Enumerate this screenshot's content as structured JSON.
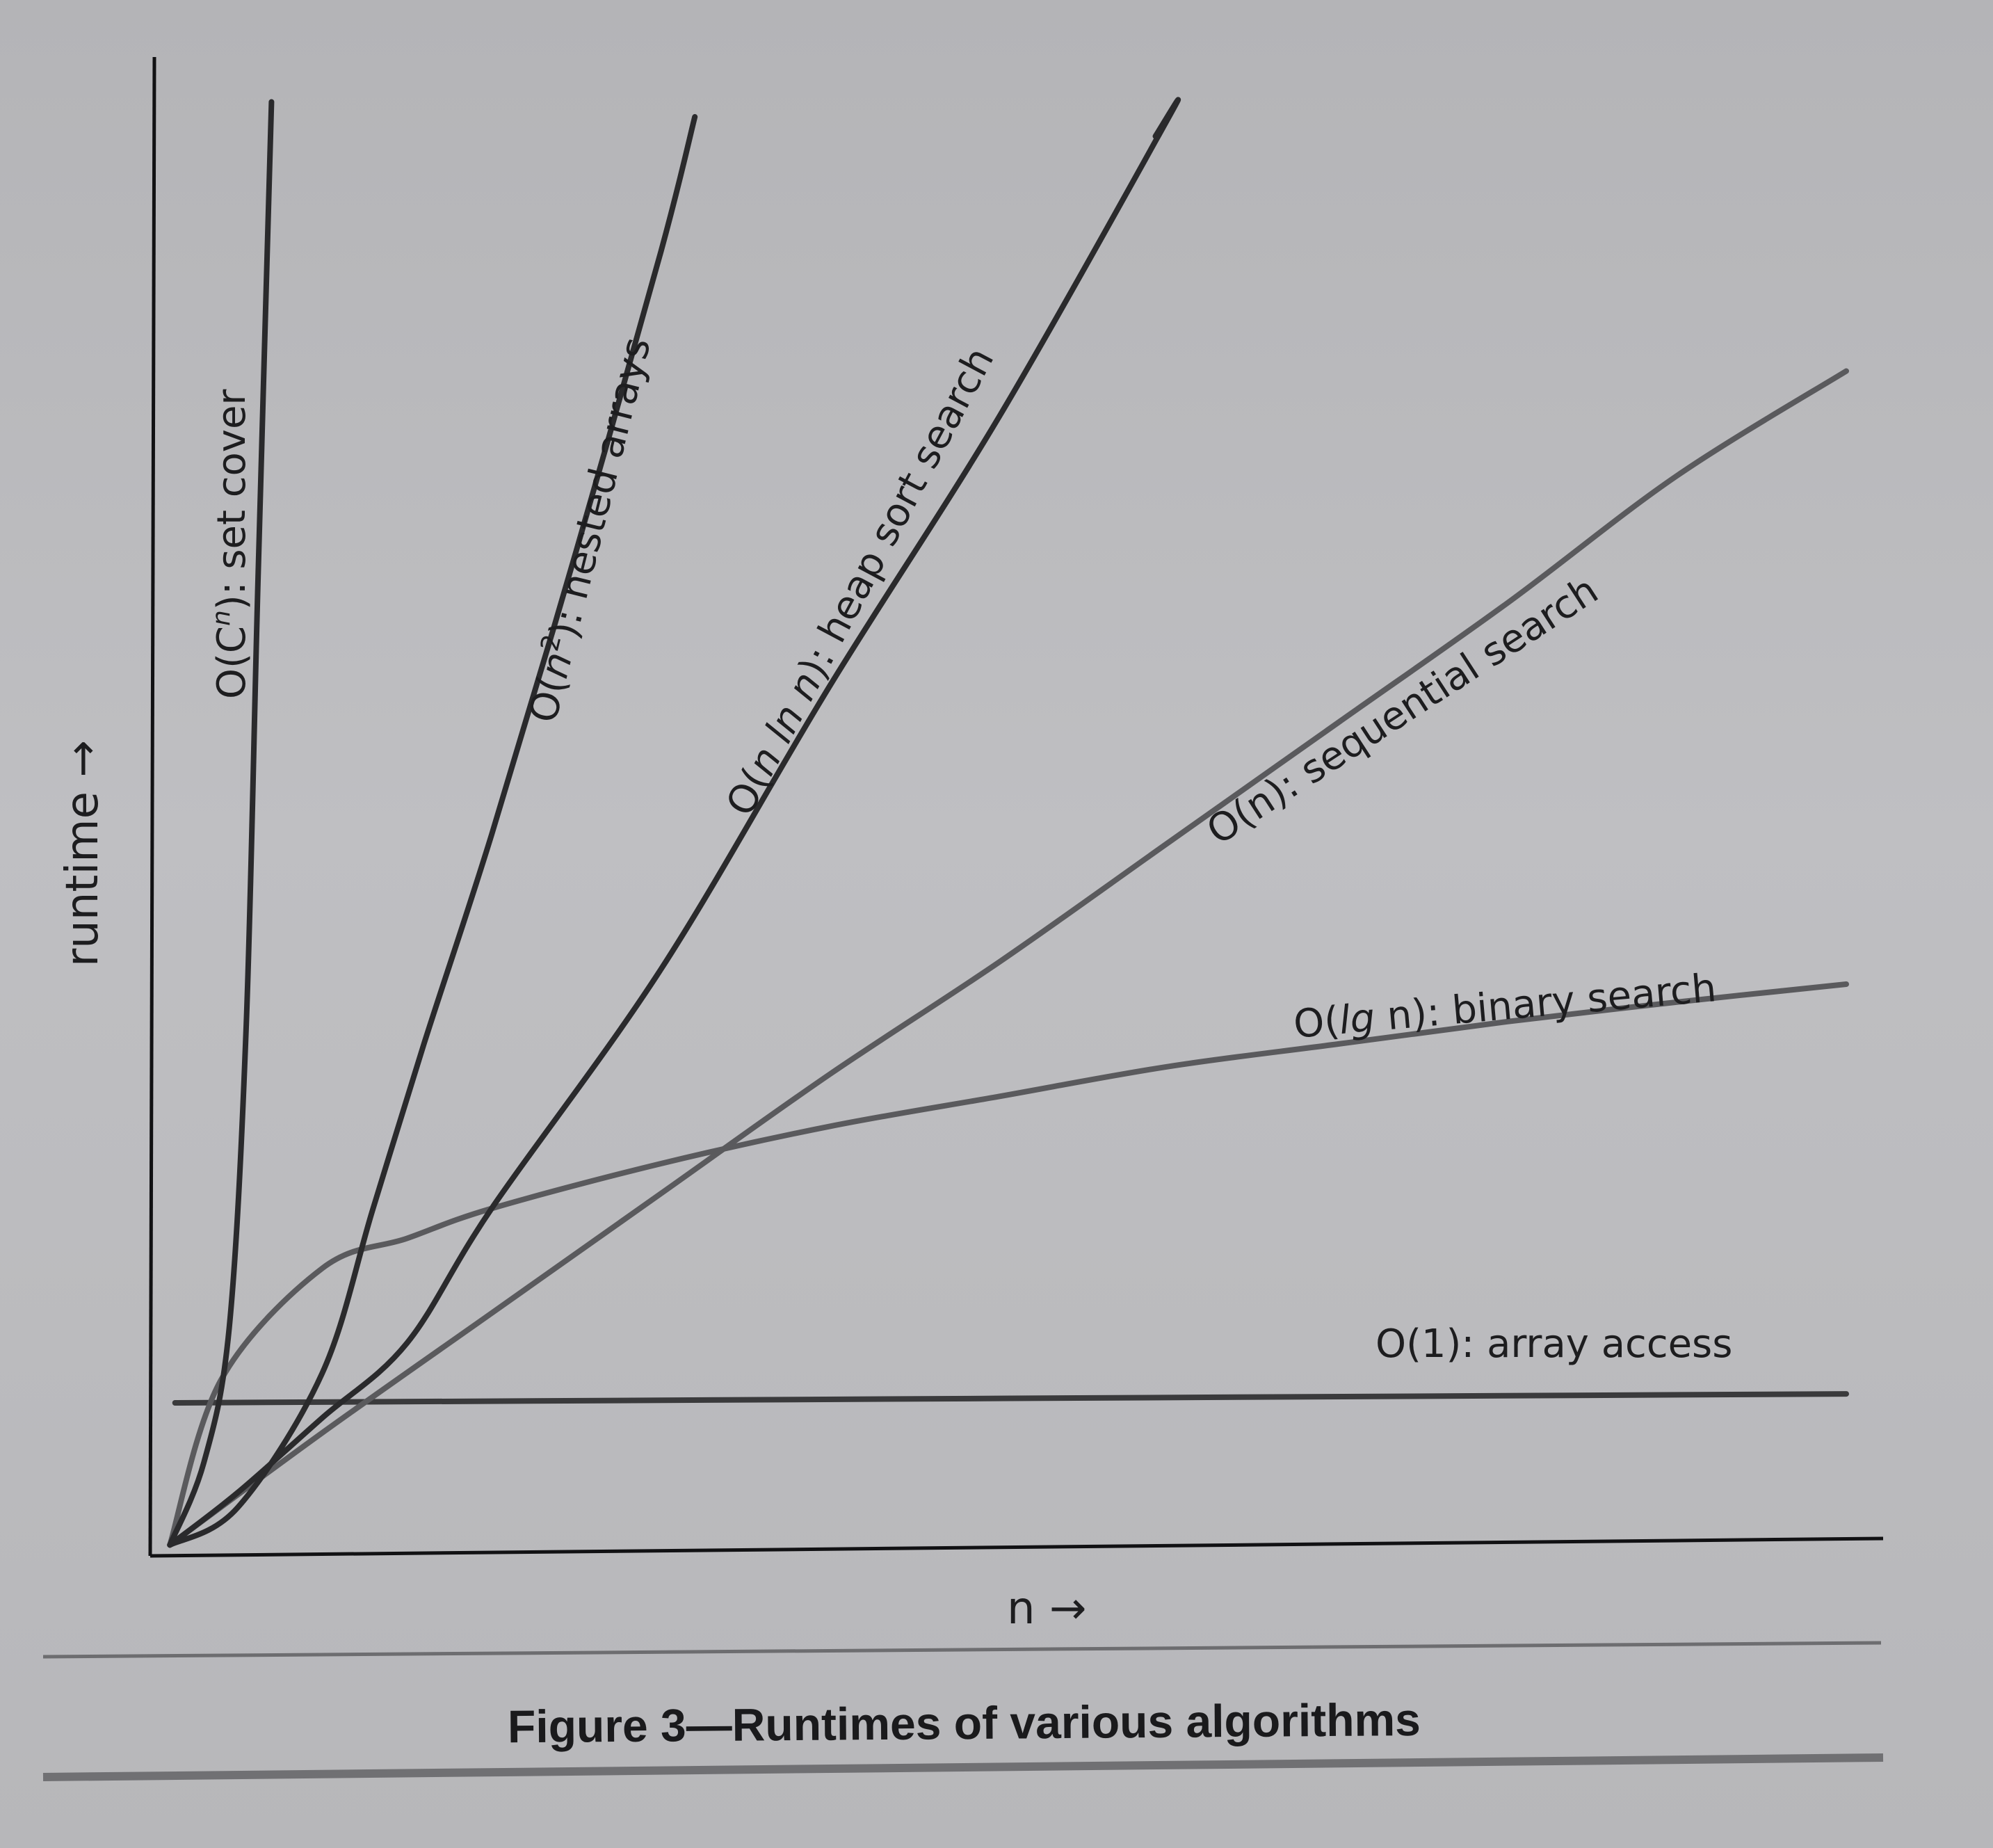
{
  "figure": {
    "caption": "Figure 3—Runtimes of various algorithms"
  },
  "chart_data": {
    "type": "line",
    "title": "",
    "xlabel": "n →",
    "ylabel": "runtime →",
    "xlim": [
      0,
      10
    ],
    "ylim": [
      0,
      10
    ],
    "grid": false,
    "legend": "none",
    "series": [
      {
        "name": "O(1): array access",
        "color": "#3a3a3c",
        "x": [
          0.13,
          10
        ],
        "y": [
          1.0,
          1.06
        ]
      },
      {
        "name": "O(lg n): binary search",
        "color": "#5a5a5d",
        "x": [
          0.1,
          0.4,
          1,
          1.5,
          2,
          3,
          4,
          5,
          6,
          7,
          8,
          9,
          10
        ],
        "y": [
          0.05,
          1.15,
          1.9,
          2.1,
          2.3,
          2.6,
          2.85,
          3.05,
          3.25,
          3.4,
          3.55,
          3.68,
          3.8
        ]
      },
      {
        "name": "O(n): sequential search",
        "color": "#5a5a5d",
        "x": [
          0.1,
          1,
          2,
          3,
          4,
          5,
          6,
          7,
          8,
          9,
          10
        ],
        "y": [
          0.05,
          0.8,
          1.6,
          2.4,
          3.2,
          3.95,
          4.75,
          5.55,
          6.35,
          7.2,
          7.9
        ]
      },
      {
        "name": "O(n ln n): heap sort search",
        "color": "#2a2a2c",
        "x": [
          0.1,
          0.5,
          1,
          1.5,
          2,
          3,
          4,
          5,
          6,
          5.92
        ],
        "y": [
          0.05,
          0.4,
          0.9,
          1.4,
          2.3,
          3.9,
          5.8,
          7.6,
          9.6,
          9.47
        ]
      },
      {
        "name": "O(n²): nested arrays",
        "color": "#2a2a2c",
        "x": [
          0.1,
          0.5,
          1,
          1.3,
          1.6,
          2,
          2.5,
          3,
          3.2
        ],
        "y": [
          0.05,
          0.3,
          1.2,
          2.3,
          3.4,
          4.8,
          6.7,
          8.7,
          9.6
        ]
      },
      {
        "name": "O(Cⁿ): set cover",
        "color": "#2a2a2c",
        "x": [
          0.1,
          0.3,
          0.45,
          0.55,
          0.62,
          0.7
        ],
        "y": [
          0.05,
          0.6,
          1.5,
          3.5,
          6.5,
          9.7
        ]
      }
    ],
    "annotations": [
      "O(Cⁿ): set cover",
      "O(n²): nested arrays",
      "O(n ln n): heap sort search",
      "O(n): sequential search",
      "O(lg n): binary search",
      "O(1): array access"
    ]
  }
}
